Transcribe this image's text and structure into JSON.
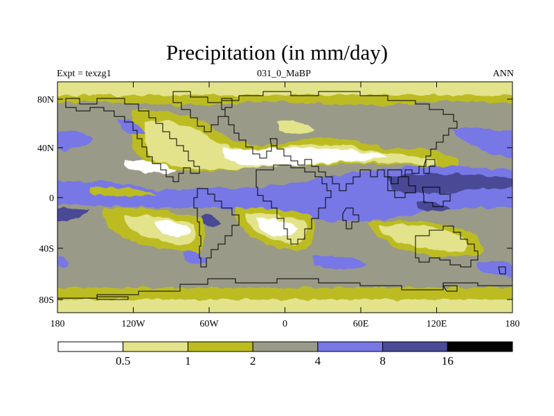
{
  "map": {
    "title": "Precipitation (in mm/day)",
    "left_subtitle": "Expt = texzg1",
    "center_subtitle": "031_0_MaBP",
    "right_subtitle": "ANN",
    "lat_labels": [
      "80N",
      "40N",
      "0",
      "40S",
      "80S"
    ],
    "lon_labels": [
      "180",
      "120W",
      "60W",
      "0",
      "60E",
      "120E",
      "180"
    ]
  },
  "colorbar": {
    "colors": [
      "#ffffff",
      "#e3e38c",
      "#bcbc20",
      "#9a9a88",
      "#7777e6",
      "#4a4a96",
      "#000000"
    ],
    "labels": [
      "0.5",
      "1",
      "2",
      "4",
      "8",
      "16"
    ]
  }
}
